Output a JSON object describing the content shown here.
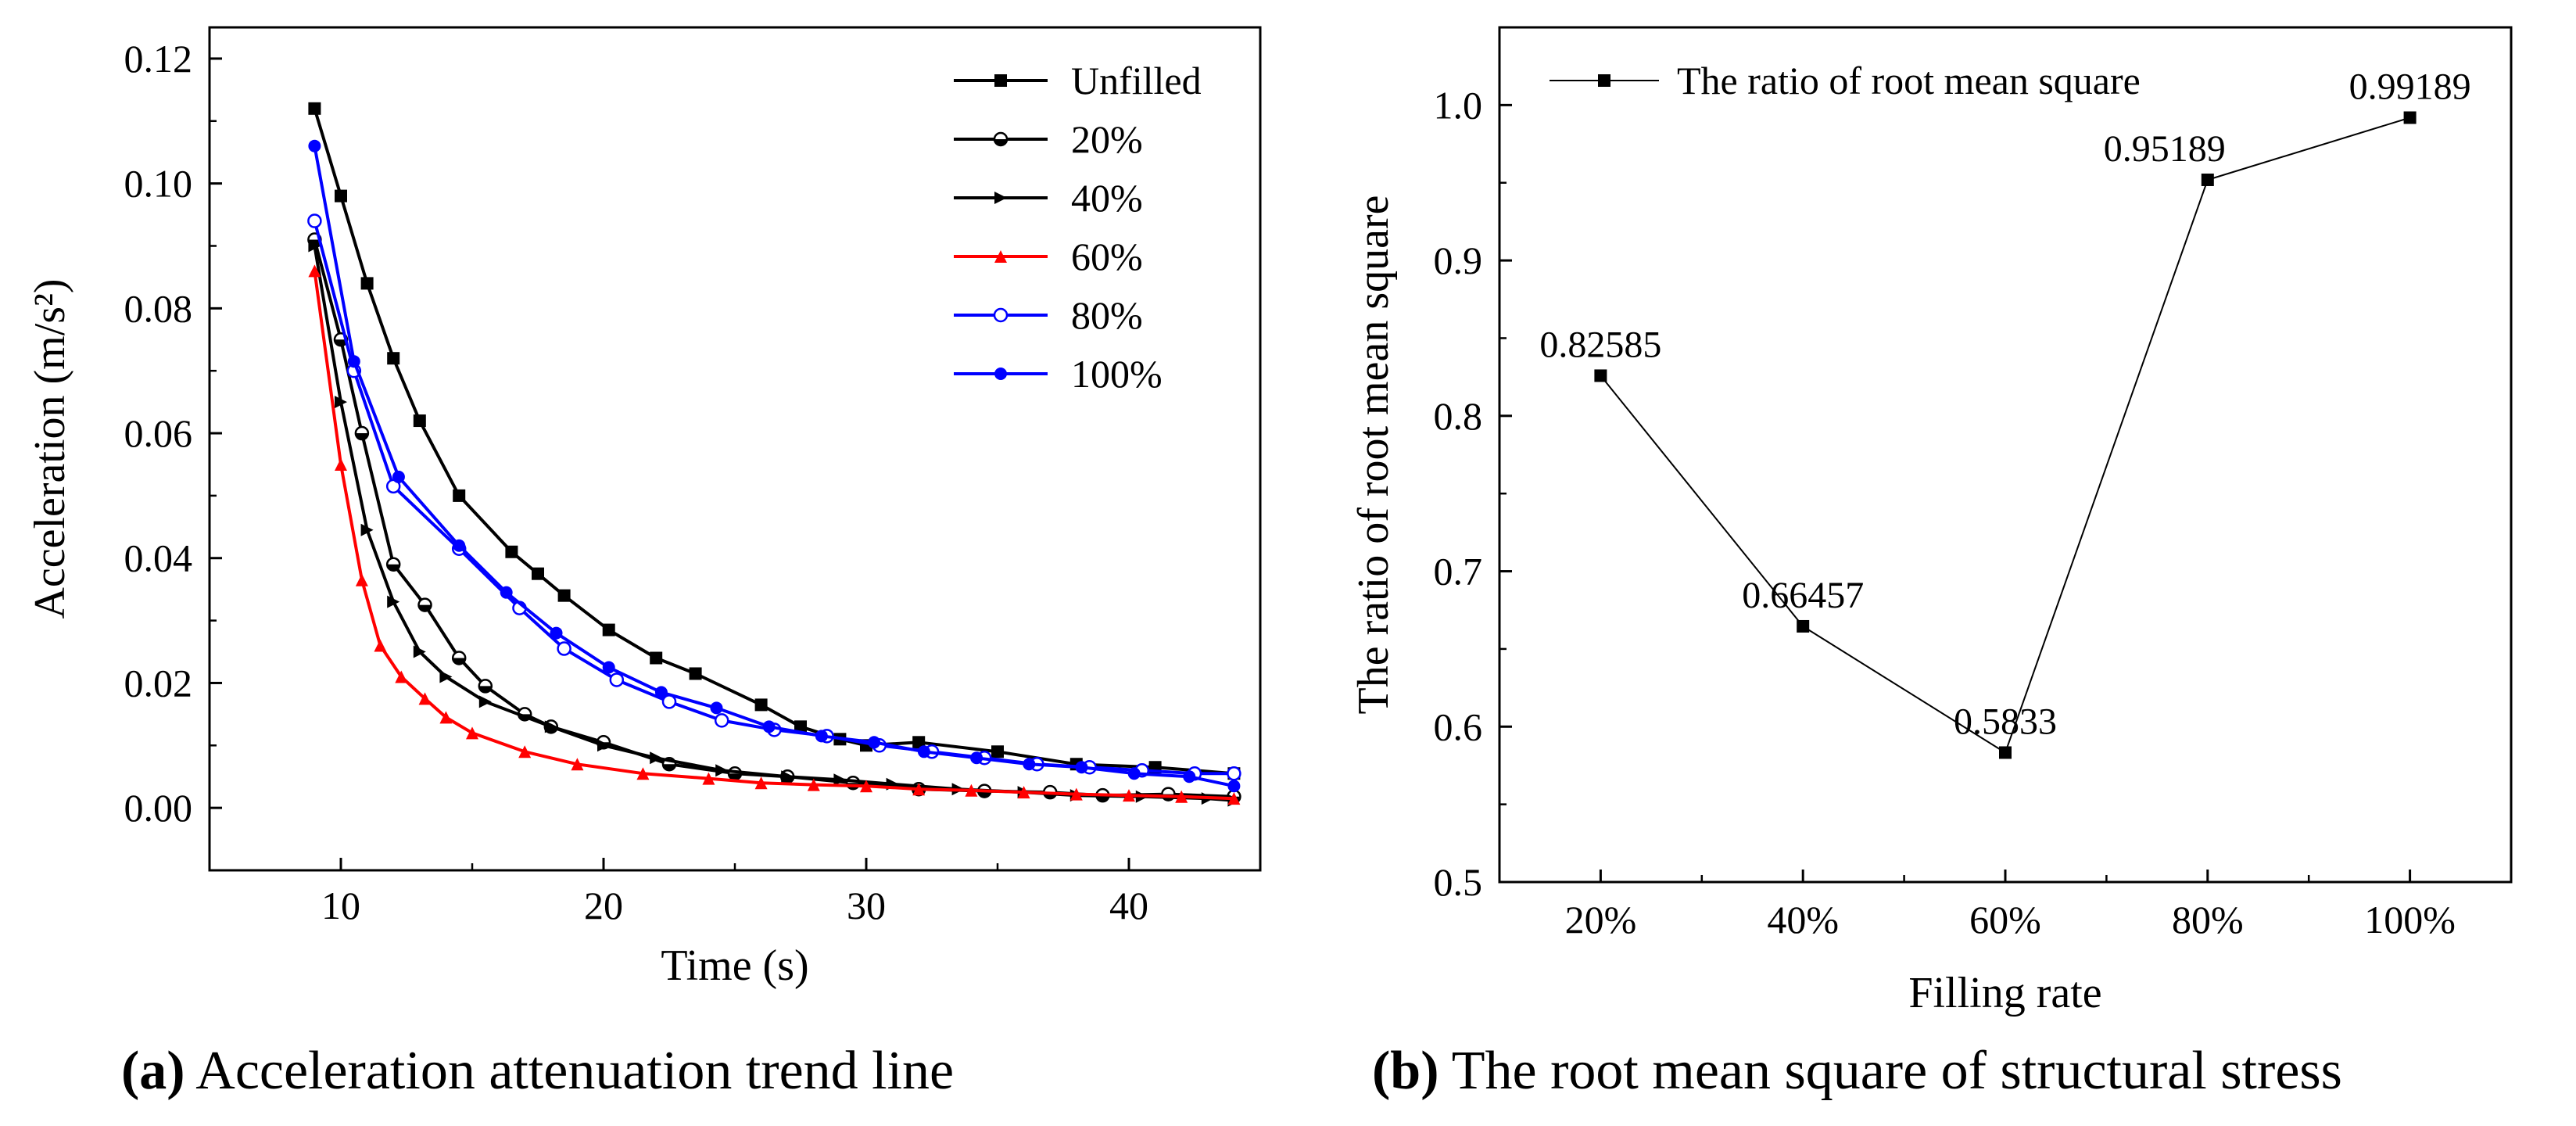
{
  "chart_data": [
    {
      "type": "line",
      "xlabel": "Time (s)",
      "ylabel": "Acceleration (m/s²)",
      "xlim": [
        5,
        45
      ],
      "ylim": [
        -0.01,
        0.125
      ],
      "xticks": [
        10,
        20,
        30,
        40
      ],
      "yticks": [
        0.0,
        0.02,
        0.04,
        0.06,
        0.08,
        0.1,
        0.12
      ],
      "xtick_labels": [
        "10",
        "20",
        "30",
        "40"
      ],
      "ytick_labels": [
        "0.00",
        "0.02",
        "0.04",
        "0.06",
        "0.08",
        "0.10",
        "0.12"
      ],
      "legend_position": "top-right",
      "series": [
        {
          "name": "Unfilled",
          "color": "#000000",
          "marker": "square-filled",
          "x": [
            9,
            10,
            11,
            12,
            13,
            14.5,
            16.5,
            17.5,
            18.5,
            20.2,
            22,
            23.5,
            26,
            27.5,
            29,
            30,
            32,
            35,
            38,
            41,
            44
          ],
          "y": [
            0.112,
            0.098,
            0.084,
            0.072,
            0.062,
            0.05,
            0.041,
            0.0375,
            0.034,
            0.0285,
            0.024,
            0.0215,
            0.0165,
            0.013,
            0.011,
            0.01,
            0.0105,
            0.009,
            0.007,
            0.0065,
            0.0055
          ]
        },
        {
          "name": "20%",
          "color": "#000000",
          "marker": "half-circle",
          "x": [
            9,
            10,
            10.8,
            12,
            13.2,
            14.5,
            15.5,
            17,
            18,
            20,
            22.5,
            25,
            27,
            29.5,
            32,
            34.5,
            37,
            39,
            41.5,
            44
          ],
          "y": [
            0.091,
            0.075,
            0.06,
            0.039,
            0.0325,
            0.024,
            0.0195,
            0.015,
            0.013,
            0.0105,
            0.007,
            0.0055,
            0.005,
            0.004,
            0.003,
            0.0027,
            0.0025,
            0.002,
            0.0022,
            0.0018
          ]
        },
        {
          "name": "40%",
          "color": "#000000",
          "marker": "triangle-right",
          "x": [
            9,
            10,
            11,
            12,
            13,
            14,
            15.5,
            18,
            20,
            22,
            24.5,
            27,
            29,
            31,
            33.5,
            36,
            38,
            40.5,
            43,
            44
          ],
          "y": [
            0.09,
            0.065,
            0.0445,
            0.033,
            0.025,
            0.021,
            0.017,
            0.013,
            0.01,
            0.008,
            0.006,
            0.005,
            0.0045,
            0.0038,
            0.003,
            0.0025,
            0.002,
            0.0018,
            0.0015,
            0.0012
          ]
        },
        {
          "name": "60%",
          "color": "#ff0000",
          "marker": "triangle-up",
          "x": [
            9,
            10,
            10.8,
            11.5,
            12.3,
            13.2,
            14,
            15,
            17,
            19,
            21.5,
            24,
            26,
            28,
            30,
            32,
            34,
            36,
            38,
            40,
            42,
            44
          ],
          "y": [
            0.086,
            0.055,
            0.0365,
            0.026,
            0.021,
            0.0175,
            0.0145,
            0.012,
            0.009,
            0.007,
            0.0055,
            0.0047,
            0.004,
            0.0037,
            0.0035,
            0.003,
            0.0028,
            0.0025,
            0.0022,
            0.002,
            0.0018,
            0.0015
          ]
        },
        {
          "name": "80%",
          "color": "#0000ff",
          "marker": "circle-open",
          "x": [
            9,
            10.5,
            12,
            14.5,
            16.8,
            18.5,
            20.5,
            22.5,
            24.5,
            26.5,
            28.5,
            30.5,
            32.5,
            34.5,
            36.5,
            38.5,
            40.5,
            42.5,
            44
          ],
          "y": [
            0.094,
            0.07,
            0.0515,
            0.0415,
            0.032,
            0.0255,
            0.0205,
            0.017,
            0.014,
            0.0125,
            0.0115,
            0.01,
            0.009,
            0.008,
            0.007,
            0.0065,
            0.006,
            0.0055,
            0.0055
          ]
        },
        {
          "name": "100%",
          "color": "#0000ff",
          "marker": "circle-filled",
          "x": [
            9,
            10.5,
            12.2,
            14.5,
            16.3,
            18.2,
            20.2,
            22.2,
            24.3,
            26.3,
            28.3,
            30.3,
            32.2,
            34.2,
            36.2,
            38.2,
            40.2,
            42.3,
            44
          ],
          "y": [
            0.106,
            0.0715,
            0.053,
            0.042,
            0.0345,
            0.028,
            0.0225,
            0.0185,
            0.016,
            0.013,
            0.0115,
            0.0105,
            0.009,
            0.008,
            0.007,
            0.0065,
            0.0055,
            0.005,
            0.0035
          ]
        }
      ]
    },
    {
      "type": "line",
      "xlabel": "Filling rate",
      "ylabel": "The ratio of root mean square",
      "categories": [
        "20%",
        "40%",
        "60%",
        "80%",
        "100%"
      ],
      "ylim": [
        0.5,
        1.05
      ],
      "yticks": [
        0.5,
        0.6,
        0.7,
        0.8,
        0.9,
        1.0
      ],
      "ytick_labels": [
        "0.5",
        "0.6",
        "0.7",
        "0.8",
        "0.9",
        "1.0"
      ],
      "legend_position": "top-left",
      "series": [
        {
          "name": "The ratio of root mean square",
          "color": "#000000",
          "marker": "square-filled",
          "values": [
            0.82585,
            0.66457,
            0.5833,
            0.95189,
            0.99189
          ],
          "labels": [
            "0.82585",
            "0.66457",
            "0.5833",
            "0.95189",
            "0.99189"
          ]
        }
      ]
    }
  ],
  "captions": {
    "a_tag": "(a)",
    "a_text": " Acceleration attenuation trend line",
    "b_tag": "(b)",
    "b_text": " The root mean square of structural stress"
  }
}
